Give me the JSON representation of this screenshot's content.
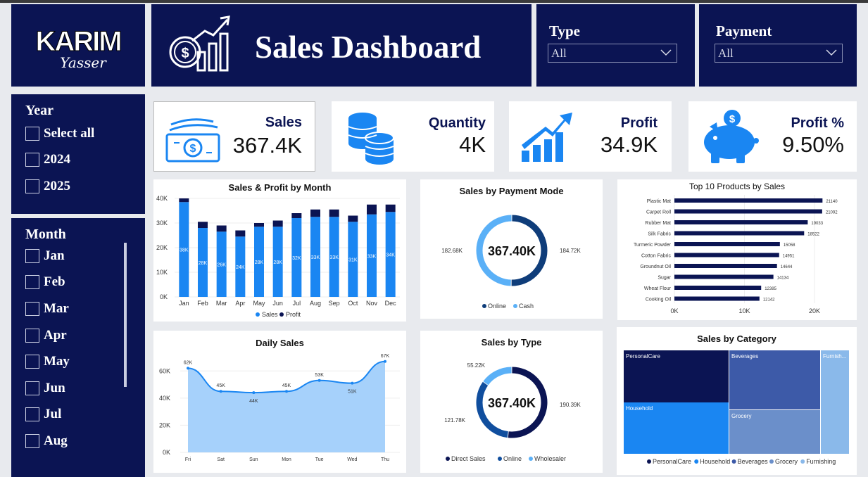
{
  "header": {
    "logo_text": "KARIM",
    "logo_signature": "Yasser",
    "title": "Sales Dashboard"
  },
  "filters": {
    "type": {
      "label": "Type",
      "value": "All"
    },
    "payment": {
      "label": "Payment",
      "value": "All"
    }
  },
  "year_slicer": {
    "title": "Year",
    "items": [
      "Select all",
      "2024",
      "2025"
    ]
  },
  "month_slicer": {
    "title": "Month",
    "items": [
      "Jan",
      "Feb",
      "Mar",
      "Apr",
      "May",
      "Jun",
      "Jul",
      "Aug"
    ]
  },
  "kpis": [
    {
      "title": "Sales",
      "value": "367.4K",
      "icon": "money-icon"
    },
    {
      "title": "Quantity",
      "value": "4K",
      "icon": "coins-stack-icon"
    },
    {
      "title": "Profit",
      "value": "34.9K",
      "icon": "growth-chart-icon"
    },
    {
      "title": "Profit %",
      "value": "9.50%",
      "icon": "piggy-bank-icon"
    }
  ],
  "colors": {
    "navy": "#0b1453",
    "blue": "#1a86f2",
    "light_blue": "#5ab0f7",
    "dark_blue": "#0b2a6f"
  },
  "chart_data": [
    {
      "type": "bar",
      "title": "Sales & Profit by Month",
      "categories": [
        "Jan",
        "Feb",
        "Mar",
        "Apr",
        "May",
        "Jun",
        "Jul",
        "Aug",
        "Sep",
        "Oct",
        "Nov",
        "Dec"
      ],
      "series": [
        {
          "name": "Sales",
          "values": [
            38.5,
            28,
            26.5,
            24.5,
            28.5,
            28.5,
            32,
            32.5,
            32.5,
            30.5,
            33.5,
            34.5
          ],
          "labels": [
            "38K",
            "28K",
            "26K",
            "24K",
            "28K",
            "28K",
            "32K",
            "33K",
            "33K",
            "31K",
            "33K",
            "34K"
          ]
        },
        {
          "name": "Profit",
          "values": [
            1.5,
            2.5,
            2.5,
            2.5,
            1.5,
            2.5,
            2,
            3,
            3,
            2.5,
            4,
            3
          ]
        }
      ],
      "yticks": [
        "0K",
        "10K",
        "20K",
        "30K",
        "40K"
      ],
      "ylim": [
        0,
        40
      ],
      "stacked": true,
      "legend": "bottom"
    },
    {
      "type": "pie",
      "title": "Sales by Payment Mode",
      "center_label": "367.40K",
      "series": [
        {
          "name": "Online",
          "value": 184.72,
          "label": "184.72K"
        },
        {
          "name": "Cash",
          "value": 182.68,
          "label": "182.68K"
        }
      ],
      "legend": "bottom"
    },
    {
      "type": "bar",
      "orientation": "horizontal",
      "title": "Top 10 Products by Sales",
      "categories": [
        "Plastic Mat",
        "Carpet Roll",
        "Rubber Mat",
        "Silk Fabric",
        "Turmeric Powder",
        "Cotton Fabric",
        "Groundnut Oil",
        "Sugar",
        "Wheat Flour",
        "Cooking Oil"
      ],
      "values": [
        21140,
        21092,
        19033,
        18522,
        15058,
        14951,
        14644,
        14134,
        12385,
        12142
      ],
      "xticks": [
        "0K",
        "10K",
        "20K"
      ],
      "xlim": [
        0,
        21500
      ]
    },
    {
      "type": "area",
      "title": "Daily Sales",
      "categories": [
        "Fri",
        "Sat",
        "Sun",
        "Mon",
        "Tue",
        "Wed",
        "Thu"
      ],
      "values": [
        62,
        45,
        44,
        45,
        53,
        51,
        67
      ],
      "labels": [
        "62K",
        "45K",
        "44K",
        "45K",
        "53K",
        "51K",
        "67K"
      ],
      "yticks": [
        "0K",
        "20K",
        "40K",
        "60K"
      ],
      "ylim": [
        0,
        70
      ]
    },
    {
      "type": "pie",
      "title": "Sales by Type",
      "center_label": "367.40K",
      "series": [
        {
          "name": "Direct Sales",
          "value": 190.39,
          "label": "190.39K"
        },
        {
          "name": "Online",
          "value": 121.78,
          "label": "121.78K"
        },
        {
          "name": "Wholesaler",
          "value": 55.22,
          "label": "55.22K"
        }
      ],
      "legend": "bottom"
    },
    {
      "type": "heatmap",
      "title": "Sales by Category",
      "tiles": [
        {
          "name": "PersonalCare",
          "label": "PersonalCare"
        },
        {
          "name": "Household",
          "label": "Household"
        },
        {
          "name": "Beverages",
          "label": "Beverages"
        },
        {
          "name": "Grocery",
          "label": "Grocery"
        },
        {
          "name": "Furnishing",
          "label": "Furnish..."
        }
      ],
      "legend_items": [
        "PersonalCare",
        "Household",
        "Beverages",
        "Grocery",
        "Furnishing"
      ],
      "legend": "bottom"
    }
  ]
}
